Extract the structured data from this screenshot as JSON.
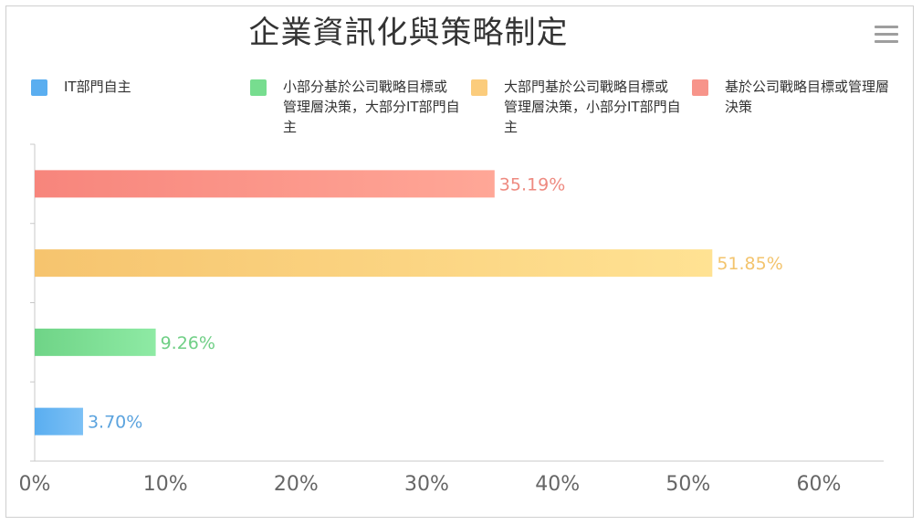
{
  "title": "企業資訊化與策略制定",
  "menu_icon": "hamburger-menu-icon",
  "legend": [
    {
      "label": "IT部門自主",
      "color": "#5aaef0"
    },
    {
      "label": "小部分基於公司戰略目標或管理層決策，大部分IT部門自主",
      "color": "#77dd8f"
    },
    {
      "label": "大部門基於公司戰略目標或管理層決策，小部分IT部門自主",
      "color": "#fbcc7c"
    },
    {
      "label": "基於公司戰略目標或管理層決策",
      "color": "#f7948a"
    }
  ],
  "chart_data": {
    "type": "bar",
    "orientation": "horizontal",
    "title": "企業資訊化與策略制定",
    "xlim": [
      0,
      60
    ],
    "x_ticks": [
      "0%",
      "10%",
      "20%",
      "30%",
      "40%",
      "50%",
      "60%"
    ],
    "categories": [
      "IT部門自主",
      "小部分基於公司戰略目標或管理層決策，大部分IT部門自主",
      "大部門基於公司戰略目標或管理層決策，小部分IT部門自主",
      "基於公司戰略目標或管理層決策"
    ],
    "values": [
      3.7,
      9.26,
      51.85,
      35.19
    ],
    "value_labels": [
      "3.70%",
      "9.26%",
      "51.85%",
      "35.19%"
    ],
    "colors": [
      "#5aaef0",
      "#77dd8f",
      "#fbcc7c",
      "#f7948a"
    ],
    "label_colors": [
      "#5ba3de",
      "#6fcf85",
      "#f3c46d",
      "#ee8a80"
    ],
    "grid": false,
    "legend_position": "top"
  }
}
